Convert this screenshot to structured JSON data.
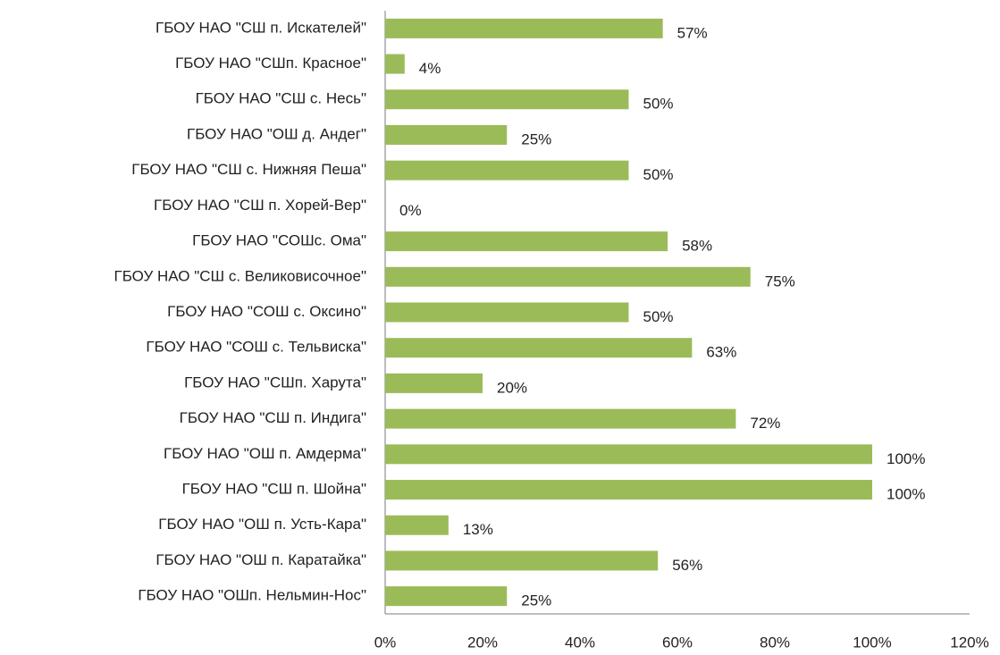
{
  "chart_data": {
    "type": "hbar",
    "categories": [
      "ГБОУ НАО \"СШ п. Искателей\"",
      "ГБОУ НАО \"СШп. Красное\"",
      "ГБОУ НАО \"СШ с. Несь\"",
      "ГБОУ НАО \"ОШ д. Андег\"",
      "ГБОУ НАО \"СШ с. Нижняя Пеша\"",
      "ГБОУ НАО \"СШ п. Хорей-Вер\"",
      "ГБОУ НАО \"СОШс. Ома\"",
      "ГБОУ НАО \"СШ с. Великовисочное\"",
      "ГБОУ НАО \"СОШ с. Оксино\"",
      "ГБОУ НАО \"СОШ с. Тельвиска\"",
      "ГБОУ НАО \"СШп. Харута\"",
      "ГБОУ НАО \"СШ п. Индига\"",
      "ГБОУ НАО \"ОШ п. Амдерма\"",
      "ГБОУ НАО \"СШ п. Шойна\"",
      "ГБОУ НАО \"ОШ п. Усть-Кара\"",
      "ГБОУ НАО \"ОШ п. Каратайка\"",
      "ГБОУ НАО \"ОШп. Нельмин-Нос\""
    ],
    "values": [
      57,
      4,
      50,
      25,
      50,
      0,
      58,
      75,
      50,
      63,
      20,
      72,
      100,
      100,
      13,
      56,
      25
    ],
    "value_labels": [
      "57%",
      "4%",
      "50%",
      "25%",
      "50%",
      "0%",
      "58%",
      "75%",
      "50%",
      "63%",
      "20%",
      "72%",
      "100%",
      "100%",
      "13%",
      "56%",
      "25%"
    ],
    "color": "#9bbb59",
    "xlim": [
      0,
      120
    ],
    "xticks": [
      {
        "value": 0,
        "label": "0%"
      },
      {
        "value": 20,
        "label": "20%"
      },
      {
        "value": 40,
        "label": "40%"
      },
      {
        "value": 60,
        "label": "60%"
      },
      {
        "value": 80,
        "label": "80%"
      },
      {
        "value": 100,
        "label": "100%"
      },
      {
        "value": 120,
        "label": "120%"
      }
    ],
    "grid": false
  }
}
